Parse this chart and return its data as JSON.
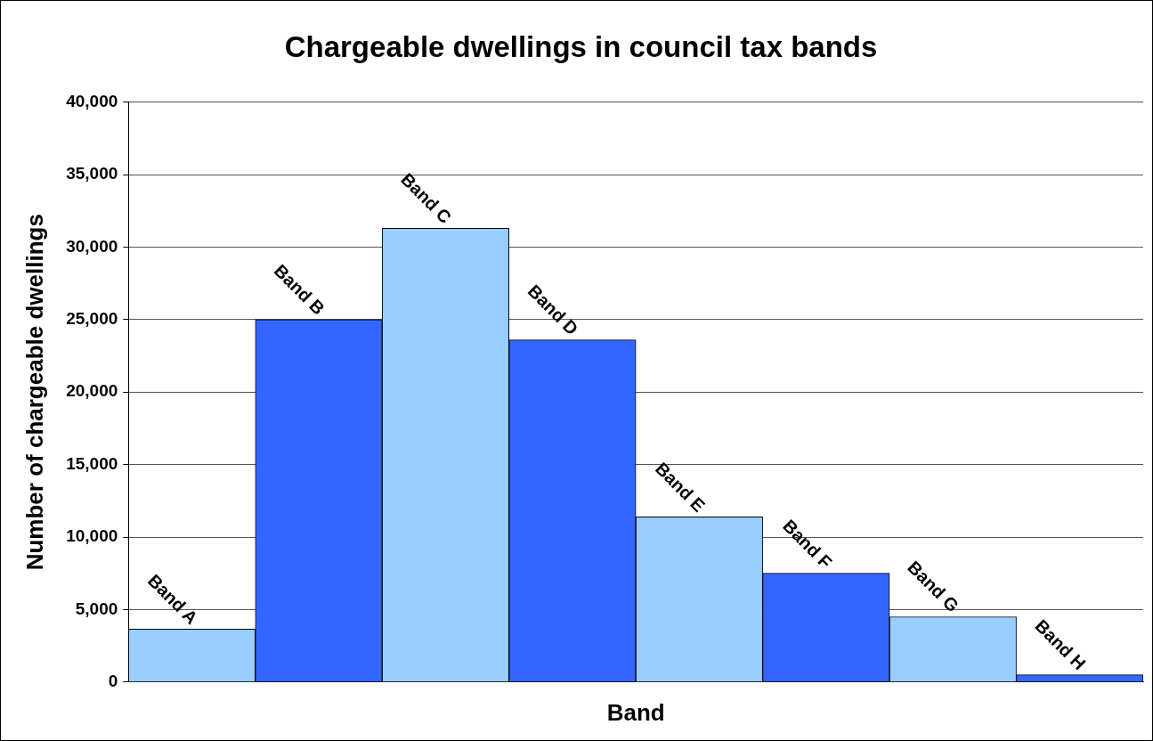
{
  "chart_data": {
    "type": "bar",
    "title": "Chargeable dwellings in council tax bands",
    "xlabel": "Band",
    "ylabel": "Number of chargeable dwellings",
    "categories": [
      "Band A",
      "Band B",
      "Band C",
      "Band D",
      "Band E",
      "Band F",
      "Band G",
      "Band H"
    ],
    "values": [
      3660,
      25000,
      31300,
      23600,
      11400,
      7500,
      4500,
      500
    ],
    "colors": [
      "#99ccff",
      "#3366ff",
      "#99ccff",
      "#3366ff",
      "#99ccff",
      "#3366ff",
      "#99ccff",
      "#3366ff"
    ],
    "ylim": [
      0,
      40000
    ],
    "yticks": [
      0,
      {
        "value": 5000,
        "label": "5,000"
      },
      {
        "value": 10000,
        "label": "10,000"
      },
      {
        "value": 15000,
        "label": "15,000"
      },
      {
        "value": 20000,
        "label": "20,000"
      },
      {
        "value": 25000,
        "label": "25,000"
      },
      {
        "value": 30000,
        "label": "30,000"
      },
      {
        "value": 35000,
        "label": "35,000"
      },
      {
        "value": 40000,
        "label": "40,000"
      }
    ],
    "grid": "y",
    "legend": false
  }
}
